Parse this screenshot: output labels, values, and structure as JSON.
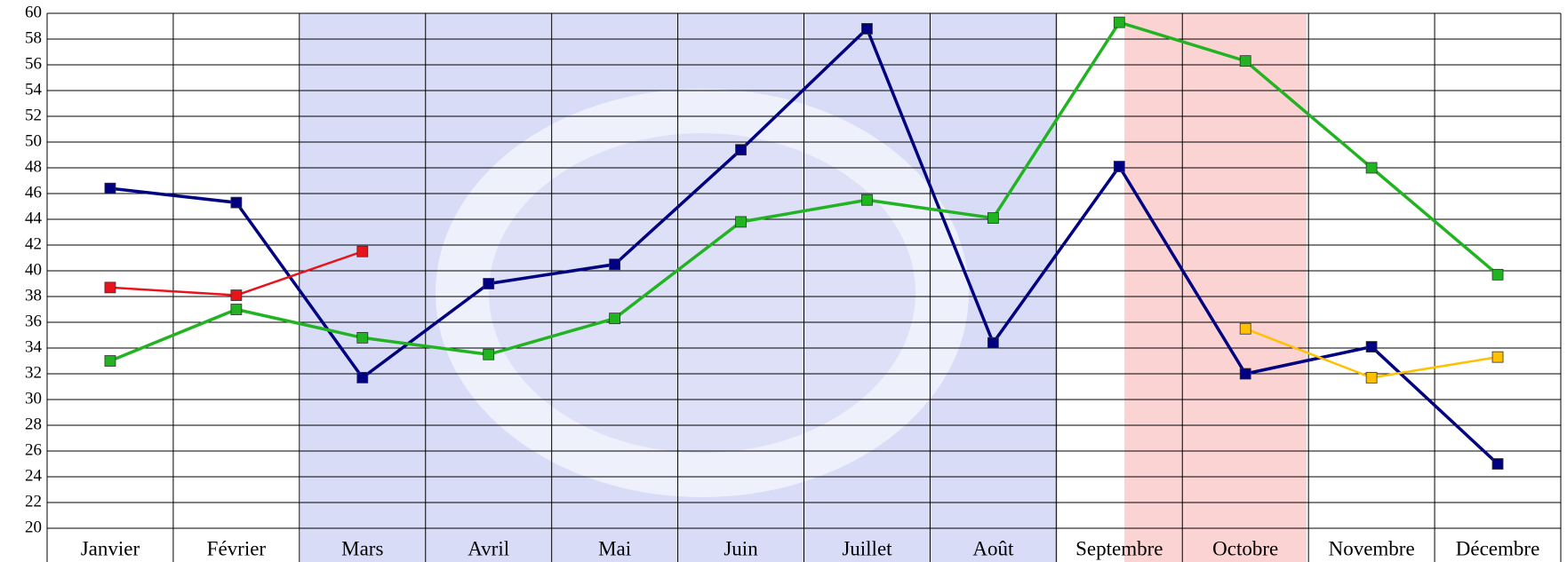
{
  "chart_data": {
    "type": "line",
    "categories": [
      "Janvier",
      "Février",
      "Mars",
      "Avril",
      "Mai",
      "Juin",
      "Juillet",
      "Août",
      "Septembre",
      "Octobre",
      "Novembre",
      "Décembre"
    ],
    "series": [
      {
        "color": "#000080",
        "values": [
          46.4,
          45.3,
          31.7,
          39,
          40.5,
          49.4,
          58.8,
          34.4,
          48.1,
          32,
          34.1,
          25
        ]
      },
      {
        "color": "#22b322",
        "values": [
          33,
          37,
          34.8,
          33.5,
          36.3,
          43.8,
          45.5,
          44.1,
          59.3,
          56.3,
          48,
          39.7
        ]
      },
      {
        "color": "#e8141c",
        "values": [
          38.7,
          38.1,
          41.5,
          null,
          null,
          null,
          null,
          null,
          null,
          null,
          null,
          null
        ]
      },
      {
        "color": "#ffc000",
        "values": [
          null,
          null,
          null,
          null,
          null,
          null,
          null,
          null,
          null,
          35.5,
          31.7,
          33.3
        ]
      }
    ],
    "ylim": [
      20,
      60
    ],
    "yticks": [
      20,
      22,
      24,
      26,
      28,
      30,
      32,
      34,
      36,
      38,
      40,
      42,
      44,
      46,
      48,
      50,
      52,
      54,
      56,
      58,
      60
    ],
    "grid": true
  }
}
